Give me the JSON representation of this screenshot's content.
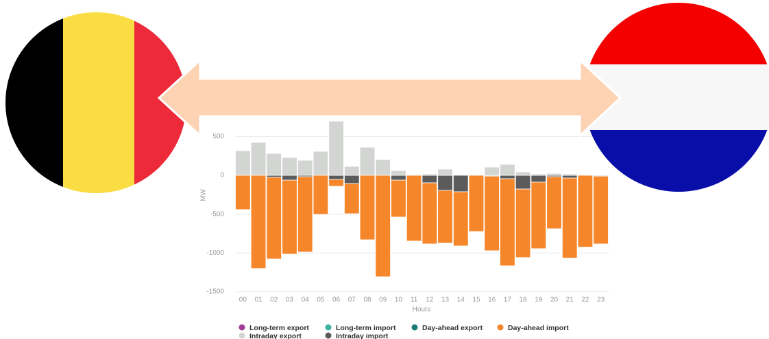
{
  "chart_data": {
    "type": "bar",
    "stacked": true,
    "x_label": "Hours",
    "y_label": "MW",
    "categories": [
      "00",
      "01",
      "02",
      "03",
      "04",
      "05",
      "06",
      "07",
      "08",
      "09",
      "10",
      "11",
      "12",
      "13",
      "14",
      "15",
      "16",
      "17",
      "18",
      "19",
      "20",
      "21",
      "22",
      "23"
    ],
    "ylim": [
      -1500,
      750
    ],
    "yticks": [
      -1500,
      -1000,
      -500,
      0,
      500
    ],
    "grid": true,
    "series": [
      {
        "name": "Long-term export",
        "color": "#a03b97",
        "values": [
          0,
          0,
          0,
          0,
          0,
          0,
          0,
          0,
          0,
          0,
          0,
          0,
          0,
          0,
          0,
          0,
          0,
          0,
          0,
          0,
          0,
          0,
          0,
          0
        ]
      },
      {
        "name": "Long-term import",
        "color": "#3cb3a0",
        "values": [
          0,
          0,
          0,
          0,
          0,
          0,
          0,
          0,
          0,
          0,
          0,
          0,
          0,
          0,
          0,
          0,
          0,
          0,
          0,
          0,
          0,
          0,
          0,
          0
        ]
      },
      {
        "name": "Day-ahead export",
        "color": "#1b7a78",
        "values": [
          0,
          0,
          0,
          0,
          0,
          0,
          0,
          0,
          0,
          0,
          0,
          0,
          0,
          0,
          0,
          0,
          0,
          0,
          0,
          0,
          0,
          0,
          0,
          0
        ]
      },
      {
        "name": "Day-ahead import",
        "color": "#f5862a",
        "values": [
          -441,
          -1200,
          -1052,
          -953,
          -970,
          -503,
          -88,
          -388,
          -830,
          -1306,
          -476,
          -847,
          -786,
          -680,
          -697,
          -724,
          -961,
          -1121,
          -882,
          -856,
          -670,
          -1033,
          -927,
          -873
        ]
      },
      {
        "name": "Intraday export",
        "color": "#d3d5d3",
        "values": [
          318,
          424,
          282,
          229,
          194,
          309,
          697,
          115,
          362,
          203,
          62,
          0,
          18,
          80,
          0,
          0,
          106,
          141,
          44,
          18,
          26,
          18,
          0,
          9
        ]
      },
      {
        "name": "Intraday import",
        "color": "#5b5b5b",
        "values": [
          0,
          0,
          -25,
          -62,
          -18,
          0,
          -53,
          -106,
          0,
          0,
          -62,
          0,
          -97,
          -194,
          -212,
          0,
          -10,
          -44,
          -177,
          -88,
          -18,
          -35,
          0,
          -10
        ]
      }
    ]
  }
}
